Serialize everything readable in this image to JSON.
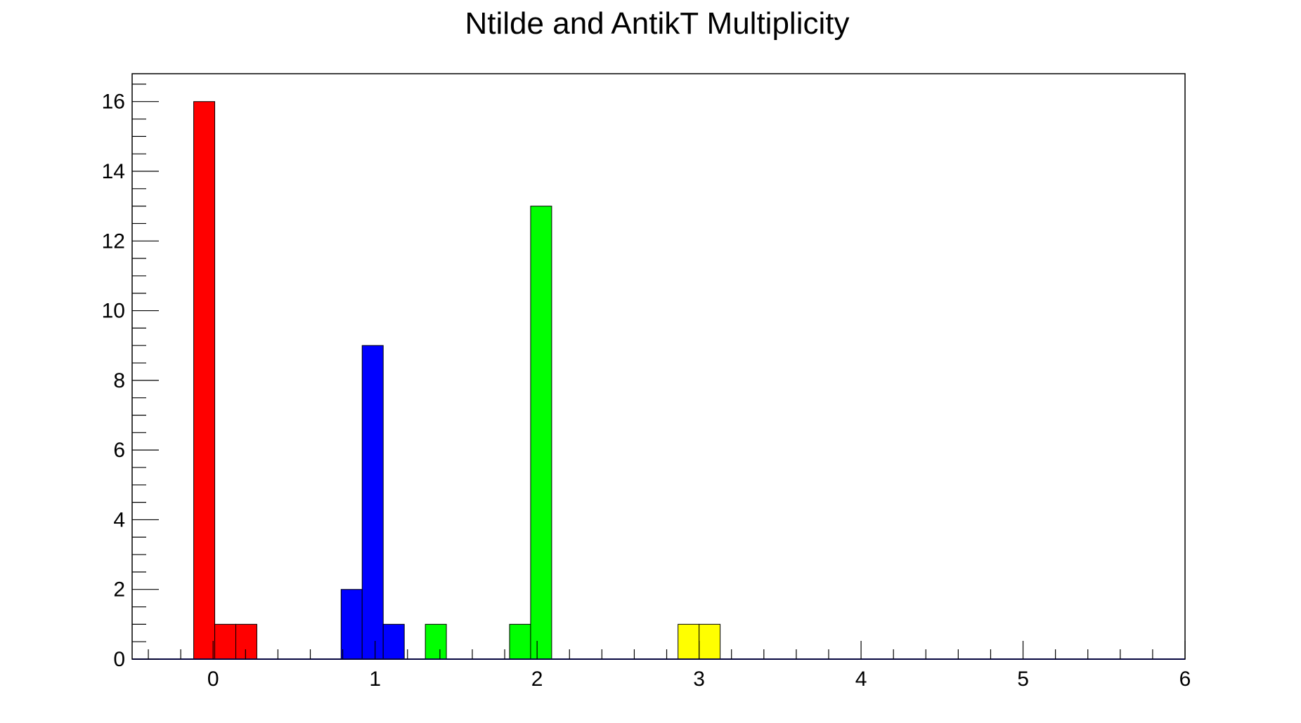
{
  "chart_data": {
    "type": "bar",
    "title": "Ntilde and AntikT Multiplicity",
    "xlabel": "",
    "ylabel": "",
    "xlim": [
      -0.5,
      6
    ],
    "ylim": [
      0,
      16.8
    ],
    "x_ticks": [
      "0",
      "1",
      "2",
      "3",
      "4",
      "5",
      "6"
    ],
    "y_ticks": [
      "0",
      "2",
      "4",
      "6",
      "8",
      "10",
      "12",
      "14",
      "16"
    ],
    "bin_width": 0.13,
    "grid": false,
    "legend": "none",
    "series": [
      {
        "color": "#ff0000",
        "bins": [
          {
            "x0": -0.12,
            "x1": 0.01,
            "value": 16
          },
          {
            "x0": 0.01,
            "x1": 0.14,
            "value": 1
          },
          {
            "x0": 0.14,
            "x1": 0.27,
            "value": 1
          }
        ]
      },
      {
        "color": "#0000ff",
        "bins": [
          {
            "x0": 0.79,
            "x1": 0.92,
            "value": 2
          },
          {
            "x0": 0.92,
            "x1": 1.05,
            "value": 9
          },
          {
            "x0": 1.05,
            "x1": 1.18,
            "value": 1
          }
        ]
      },
      {
        "color": "#00ff00",
        "bins": [
          {
            "x0": 1.31,
            "x1": 1.44,
            "value": 1
          },
          {
            "x0": 1.83,
            "x1": 1.96,
            "value": 1
          },
          {
            "x0": 1.96,
            "x1": 2.09,
            "value": 13
          }
        ]
      },
      {
        "color": "#ffff00",
        "bins": [
          {
            "x0": 2.87,
            "x1": 3.0,
            "value": 1
          },
          {
            "x0": 3.0,
            "x1": 3.13,
            "value": 1
          }
        ]
      }
    ]
  }
}
